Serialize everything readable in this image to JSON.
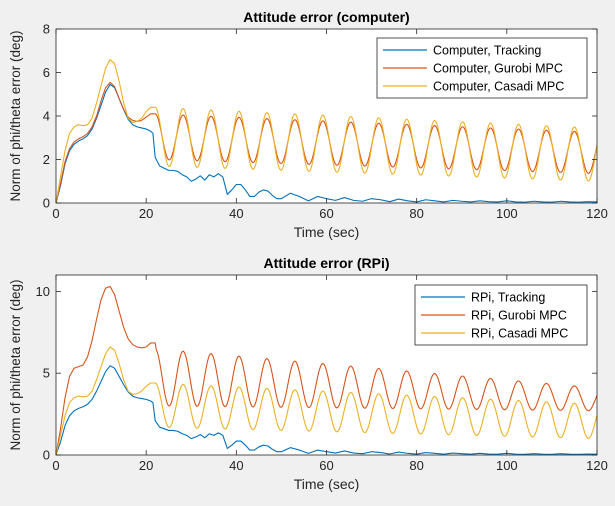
{
  "chart_data": [
    {
      "type": "line",
      "title": "Attitude error (computer)",
      "xlabel": "Time (sec)",
      "ylabel": "Norm of phi/theta error (deg)",
      "xlim": [
        0,
        120
      ],
      "ylim": [
        0,
        8
      ],
      "xticks": [
        0,
        20,
        40,
        60,
        80,
        100,
        120
      ],
      "yticks": [
        0,
        2,
        4,
        6,
        8
      ],
      "grid": false,
      "legend_position": "top-right",
      "series": [
        {
          "name": "Computer, Tracking",
          "color": "#0072bd",
          "x": [
            0,
            1,
            2,
            3,
            4,
            5,
            6,
            7,
            8,
            9,
            10,
            11,
            12,
            13,
            14,
            15,
            16,
            17,
            18,
            19,
            20,
            21,
            21.5,
            22,
            23,
            24,
            25,
            26,
            27,
            28,
            29,
            30,
            31,
            32,
            33,
            34,
            35,
            36,
            37,
            38,
            39,
            40,
            41,
            42,
            43,
            44,
            45,
            46,
            47,
            48,
            49,
            50,
            52,
            54,
            56,
            58,
            60,
            62,
            64,
            66,
            68,
            70,
            72,
            74,
            76,
            78,
            80,
            82,
            84,
            86,
            88,
            90,
            92,
            94,
            96,
            98,
            100,
            102,
            104,
            106,
            108,
            110,
            112,
            114,
            116,
            118,
            120
          ],
          "y": [
            0,
            0.8,
            1.8,
            2.4,
            2.7,
            2.85,
            2.95,
            3.1,
            3.4,
            3.9,
            4.5,
            5.1,
            5.45,
            5.3,
            4.8,
            4.3,
            3.85,
            3.6,
            3.5,
            3.45,
            3.4,
            3.3,
            3.2,
            2.1,
            1.7,
            1.6,
            1.5,
            1.5,
            1.45,
            1.3,
            1.2,
            1.0,
            1.1,
            1.25,
            1.05,
            1.3,
            1.2,
            1.35,
            1.2,
            0.4,
            0.6,
            0.85,
            0.85,
            0.6,
            0.3,
            0.3,
            0.5,
            0.6,
            0.55,
            0.35,
            0.2,
            0.2,
            0.45,
            0.3,
            0.1,
            0.3,
            0.2,
            0.12,
            0.25,
            0.12,
            0.08,
            0.2,
            0.15,
            0.06,
            0.18,
            0.1,
            0.05,
            0.15,
            0.1,
            0.05,
            0.12,
            0.08,
            0.05,
            0.1,
            0.06,
            0.05,
            0.1,
            0.05,
            0.04,
            0.08,
            0.05,
            0.04,
            0.08,
            0.05,
            0.04,
            0.06,
            0.05
          ]
        },
        {
          "name": "Computer, Gurobi MPC",
          "color": "#d95319",
          "x": [
            0,
            1,
            2,
            3,
            4,
            5,
            6,
            7,
            8,
            9,
            10,
            11,
            12,
            13,
            14,
            15,
            16,
            17,
            18,
            19,
            20,
            21,
            22
          ],
          "y": [
            0,
            0.9,
            1.9,
            2.5,
            2.8,
            2.95,
            3.05,
            3.2,
            3.5,
            4.0,
            4.7,
            5.3,
            5.55,
            5.35,
            4.8,
            4.3,
            3.95,
            3.8,
            3.75,
            3.8,
            3.95,
            4.1,
            4.1
          ],
          "osc_from": 22,
          "osc_to": 120,
          "osc_period": 6.2,
          "osc_peak_start": 4.1,
          "osc_peak_end": 3.25,
          "osc_trough_start": 2.0,
          "osc_trough_end": 1.35
        },
        {
          "name": "Computer, Casadi MPC",
          "color": "#edb120",
          "x": [
            0,
            1,
            2,
            3,
            4,
            5,
            6,
            7,
            8,
            9,
            10,
            11,
            12,
            13,
            14,
            15,
            16,
            17,
            18,
            19,
            20,
            21,
            22
          ],
          "y": [
            0,
            1.2,
            2.4,
            3.2,
            3.5,
            3.6,
            3.55,
            3.6,
            3.9,
            4.6,
            5.4,
            6.2,
            6.6,
            6.4,
            5.6,
            4.6,
            3.9,
            3.7,
            3.75,
            3.9,
            4.2,
            4.4,
            4.4
          ],
          "osc_from": 22,
          "osc_to": 120,
          "osc_period": 6.2,
          "osc_peak_start": 4.4,
          "osc_peak_end": 3.45,
          "osc_trough_start": 1.7,
          "osc_trough_end": 1.0
        }
      ]
    },
    {
      "type": "line",
      "title": "Attitude error (RPi)",
      "xlabel": "Time (sec)",
      "ylabel": "Norm of phi/theta error (deg)",
      "xlim": [
        0,
        120
      ],
      "ylim": [
        0,
        11
      ],
      "xticks": [
        0,
        20,
        40,
        60,
        80,
        100,
        120
      ],
      "yticks": [
        0,
        5,
        10
      ],
      "grid": false,
      "legend_position": "top-right",
      "series": [
        {
          "name": "RPi, Tracking",
          "color": "#0072bd",
          "x": [
            0,
            1,
            2,
            3,
            4,
            5,
            6,
            7,
            8,
            9,
            10,
            11,
            12,
            13,
            14,
            15,
            16,
            17,
            18,
            19,
            20,
            21,
            21.5,
            22,
            23,
            24,
            25,
            26,
            27,
            28,
            29,
            30,
            31,
            32,
            33,
            34,
            35,
            36,
            37,
            38,
            39,
            40,
            41,
            42,
            43,
            44,
            45,
            46,
            47,
            48,
            49,
            50,
            52,
            54,
            56,
            58,
            60,
            62,
            64,
            66,
            68,
            70,
            72,
            74,
            76,
            78,
            80,
            82,
            84,
            86,
            88,
            90,
            92,
            94,
            96,
            98,
            100,
            102,
            104,
            106,
            108,
            110,
            112,
            114,
            116,
            118,
            120
          ],
          "y": [
            0,
            0.8,
            1.8,
            2.4,
            2.7,
            2.85,
            2.95,
            3.1,
            3.4,
            3.9,
            4.5,
            5.1,
            5.45,
            5.3,
            4.8,
            4.3,
            3.85,
            3.6,
            3.5,
            3.45,
            3.4,
            3.3,
            3.2,
            2.1,
            1.7,
            1.6,
            1.5,
            1.5,
            1.45,
            1.3,
            1.2,
            1.0,
            1.1,
            1.25,
            1.05,
            1.3,
            1.2,
            1.35,
            1.2,
            0.4,
            0.6,
            0.85,
            0.85,
            0.6,
            0.3,
            0.3,
            0.5,
            0.6,
            0.55,
            0.35,
            0.2,
            0.2,
            0.45,
            0.3,
            0.1,
            0.3,
            0.2,
            0.12,
            0.25,
            0.12,
            0.08,
            0.2,
            0.15,
            0.06,
            0.18,
            0.1,
            0.05,
            0.15,
            0.1,
            0.05,
            0.12,
            0.08,
            0.05,
            0.1,
            0.06,
            0.05,
            0.1,
            0.05,
            0.04,
            0.08,
            0.05,
            0.04,
            0.08,
            0.05,
            0.04,
            0.06,
            0.05
          ]
        },
        {
          "name": "RPi, Gurobi MPC",
          "color": "#d95319",
          "x": [
            0,
            1,
            2,
            3,
            4,
            5,
            6,
            7,
            8,
            9,
            10,
            11,
            12,
            13,
            14,
            15,
            16,
            17,
            18,
            19,
            20,
            21,
            22
          ],
          "y": [
            0,
            1.6,
            3.5,
            4.8,
            5.3,
            5.4,
            5.5,
            6.0,
            7.0,
            8.3,
            9.5,
            10.2,
            10.3,
            9.8,
            8.8,
            7.8,
            7.1,
            6.75,
            6.6,
            6.55,
            6.6,
            6.85,
            6.85
          ],
          "osc_from": 22,
          "osc_to": 120,
          "osc_period": 6.2,
          "osc_peak_start": 6.5,
          "osc_peak_end": 4.1,
          "osc_trough_start": 3.0,
          "osc_trough_end": 2.7
        },
        {
          "name": "RPi, Casadi MPC",
          "color": "#edb120",
          "x": [
            0,
            1,
            2,
            3,
            4,
            5,
            6,
            7,
            8,
            9,
            10,
            11,
            12,
            13,
            14,
            15,
            16,
            17,
            18,
            19,
            20,
            21,
            22
          ],
          "y": [
            0,
            1.2,
            2.4,
            3.2,
            3.5,
            3.6,
            3.55,
            3.6,
            3.9,
            4.6,
            5.4,
            6.2,
            6.6,
            6.4,
            5.6,
            4.6,
            3.9,
            3.7,
            3.75,
            3.9,
            4.2,
            4.4,
            4.4
          ],
          "osc_from": 22,
          "osc_to": 120,
          "osc_period": 6.2,
          "osc_peak_start": 4.4,
          "osc_peak_end": 3.1,
          "osc_trough_start": 1.7,
          "osc_trough_end": 1.0
        }
      ]
    }
  ]
}
